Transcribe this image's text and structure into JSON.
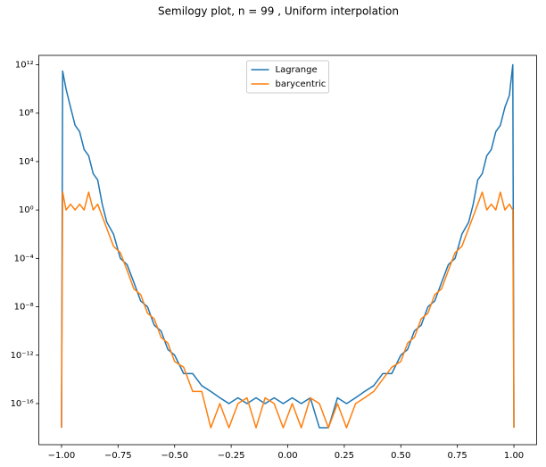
{
  "chart_data": {
    "type": "line",
    "title": "Semilogy plot, n = 99 , Uniform interpolation",
    "x": [
      -1,
      -0.995,
      -0.98,
      -0.96,
      -0.94,
      -0.92,
      -0.9,
      -0.88,
      -0.86,
      -0.84,
      -0.82,
      -0.8,
      -0.77,
      -0.74,
      -0.71,
      -0.68,
      -0.65,
      -0.62,
      -0.59,
      -0.56,
      -0.53,
      -0.5,
      -0.46,
      -0.42,
      -0.38,
      -0.34,
      -0.3,
      -0.26,
      -0.22,
      -0.18,
      -0.14,
      -0.1,
      -0.06,
      -0.02,
      0.02,
      0.06,
      0.1,
      0.14,
      0.18,
      0.22,
      0.26,
      0.3,
      0.34,
      0.38,
      0.42,
      0.46,
      0.5,
      0.53,
      0.56,
      0.59,
      0.62,
      0.65,
      0.68,
      0.71,
      0.74,
      0.77,
      0.8,
      0.82,
      0.84,
      0.86,
      0.88,
      0.9,
      0.92,
      0.94,
      0.96,
      0.98,
      0.995,
      1
    ],
    "series": [
      {
        "name": "Lagrange",
        "color": "#1f77b4",
        "values": [
          1e-18,
          300000000000.0,
          10000000000.0,
          300000000.0,
          10000000.0,
          3000000.0,
          100000.0,
          30000.0,
          1000.0,
          300.0,
          3,
          0.1,
          0.01,
          0.0001,
          3e-05,
          1e-06,
          3e-08,
          1e-08,
          3e-10,
          1e-10,
          3e-12,
          1e-12,
          3e-14,
          3e-14,
          3e-15,
          1e-15,
          3e-16,
          1e-16,
          3e-16,
          1e-16,
          3e-16,
          1e-16,
          3e-16,
          1e-16,
          3e-16,
          1e-16,
          3e-16,
          1e-18,
          1e-18,
          3e-16,
          1e-16,
          3e-16,
          1e-15,
          3e-15,
          3e-14,
          3e-14,
          1e-12,
          3e-12,
          1e-10,
          3e-10,
          1e-08,
          3e-08,
          1e-06,
          3e-05,
          0.0001,
          0.01,
          0.1,
          3,
          300.0,
          1000.0,
          30000.0,
          100000.0,
          3000000.0,
          10000000.0,
          300000000.0,
          3000000000.0,
          1000000000000.0,
          1e-18
        ]
      },
      {
        "name": "barycentric",
        "color": "#ff7f0e",
        "values": [
          1e-18,
          30,
          1,
          3,
          1,
          3,
          1,
          30,
          1,
          3,
          0.3,
          0.03,
          0.001,
          0.0003,
          1e-05,
          3e-07,
          1e-07,
          3e-09,
          1e-09,
          3e-11,
          1e-11,
          3e-13,
          1e-13,
          1e-15,
          1e-15,
          1e-18,
          1e-16,
          1e-18,
          1e-16,
          3e-16,
          1e-18,
          3e-16,
          1e-16,
          1e-18,
          1e-16,
          1e-18,
          3e-16,
          1e-16,
          1e-18,
          1e-16,
          1e-18,
          1e-16,
          3e-16,
          1e-15,
          1e-14,
          1e-13,
          3e-13,
          1e-11,
          3e-11,
          1e-09,
          3e-09,
          1e-07,
          3e-07,
          1e-05,
          0.0003,
          0.001,
          0.03,
          0.3,
          3,
          30,
          1,
          3,
          1,
          30,
          1,
          3,
          1,
          1e-18
        ]
      }
    ],
    "xlim": [
      -1.1,
      1.1
    ],
    "xticks": [
      {
        "value": -1,
        "label": "−1.00"
      },
      {
        "value": -0.75,
        "label": "−0.75"
      },
      {
        "value": -0.5,
        "label": "−0.50"
      },
      {
        "value": -0.25,
        "label": "−0.25"
      },
      {
        "value": 0,
        "label": "0.00"
      },
      {
        "value": 0.25,
        "label": "0.25"
      },
      {
        "value": 0.5,
        "label": "0.50"
      },
      {
        "value": 0.75,
        "label": "0.75"
      },
      {
        "value": 1,
        "label": "1.00"
      }
    ],
    "ylim": [
      4e-20,
      6000000000000.0
    ],
    "log_y": true,
    "yticks": [
      {
        "value": 1000000000000.0,
        "label": "10¹²"
      },
      {
        "value": 100000000.0,
        "label": "10⁸"
      },
      {
        "value": 10000.0,
        "label": "10⁴"
      },
      {
        "value": 1,
        "label": "10⁰"
      },
      {
        "value": 0.0001,
        "label": "10⁻⁴"
      },
      {
        "value": 1e-08,
        "label": "10⁻⁸"
      },
      {
        "value": 1e-12,
        "label": "10⁻¹²"
      },
      {
        "value": 1e-16,
        "label": "10⁻¹⁶"
      }
    ],
    "legend": "upper center"
  }
}
